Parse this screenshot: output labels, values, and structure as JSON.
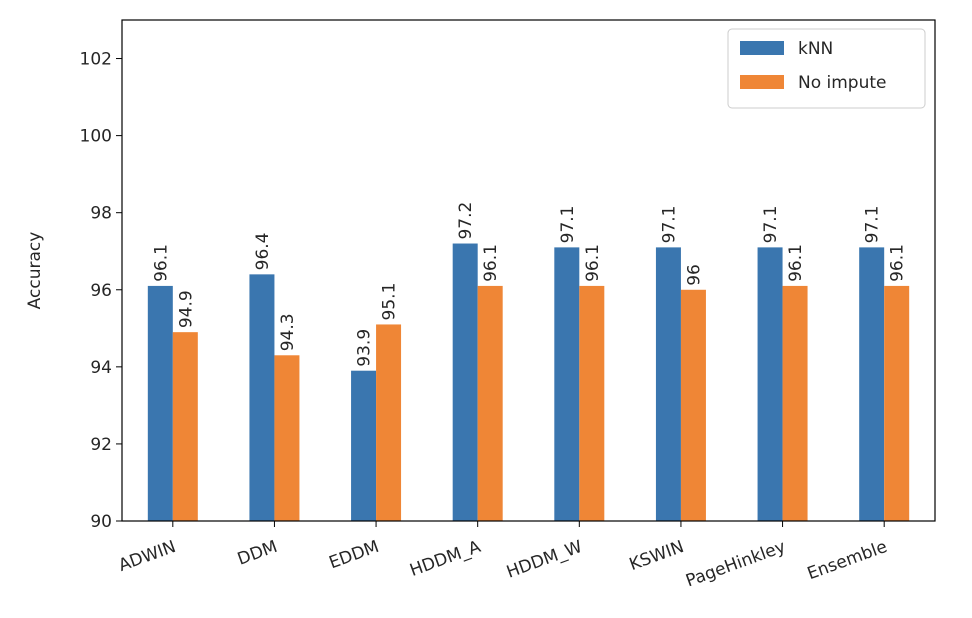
{
  "chart_data": {
    "type": "bar",
    "categories": [
      "ADWIN",
      "DDM",
      "EDDM",
      "HDDM_A",
      "HDDM_W",
      "KSWIN",
      "PageHinkley",
      "Ensemble"
    ],
    "series": [
      {
        "name": "kNN",
        "color": "#3a76af",
        "values": [
          96.1,
          96.4,
          93.9,
          97.2,
          97.1,
          97.1,
          97.1,
          97.1
        ],
        "labels": [
          "96.1",
          "96.4",
          "93.9",
          "97.2",
          "97.1",
          "97.1",
          "97.1",
          "97.1"
        ]
      },
      {
        "name": "No impute",
        "color": "#ef8636",
        "values": [
          94.9,
          94.3,
          95.1,
          96.1,
          96.1,
          96.0,
          96.1,
          96.1
        ],
        "labels": [
          "94.9",
          "94.3",
          "95.1",
          "96.1",
          "96.1",
          "96",
          "96.1",
          "96.1"
        ]
      }
    ],
    "ylabel": "Accuracy",
    "xlabel": "",
    "title": "",
    "ylim": [
      90,
      103
    ],
    "yticks": [
      90,
      92,
      94,
      96,
      98,
      100,
      102
    ],
    "ytick_labels": [
      "90",
      "92",
      "94",
      "96",
      "98",
      "100",
      "102"
    ],
    "grid": false,
    "legend_position": "top-right"
  }
}
